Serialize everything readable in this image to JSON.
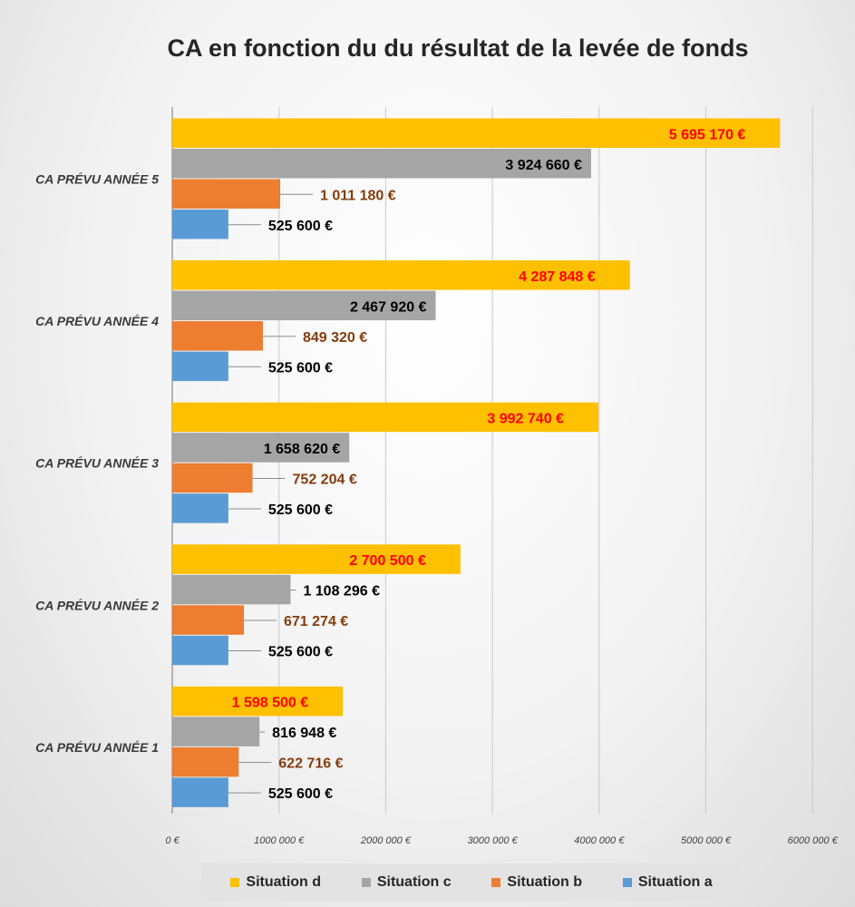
{
  "chart_data": {
    "type": "bar",
    "orientation": "horizontal",
    "title": "CA en fonction du du résultat de la levée de fonds",
    "categories": [
      "CA PRÉVU ANNÉE 1",
      "CA PRÉVU ANNÉE 2",
      "CA PRÉVU ANNÉE 3",
      "CA PRÉVU ANNÉE 4",
      "CA PRÉVU ANNÉE 5"
    ],
    "xlim": [
      0,
      6000000
    ],
    "x_ticks": [
      0,
      1000000,
      2000000,
      3000000,
      4000000,
      5000000,
      6000000
    ],
    "x_tick_labels": [
      "0 €",
      "1000 000 €",
      "2000 000 €",
      "3000 000 €",
      "4000 000 €",
      "5000 000 €",
      "6000 000 €"
    ],
    "grid": true,
    "legend_position": "bottom",
    "series": [
      {
        "name": "Situation d",
        "color": "#FFC000",
        "label_color": "#FF0000",
        "values": [
          1598500,
          2700500,
          3992740,
          4287848,
          5695170
        ],
        "labels": [
          "1 598 500 €",
          "2 700 500 €",
          "3 992 740 €",
          "4 287 848 €",
          "5 695 170 €"
        ]
      },
      {
        "name": "Situation c",
        "color": "#A5A5A5",
        "label_color": "#000000",
        "values": [
          816948,
          1108296,
          1658620,
          2467920,
          3924660
        ],
        "labels": [
          "816 948 €",
          "1 108 296 €",
          "1 658 620 €",
          "2 467 920 €",
          "3 924 660 €"
        ]
      },
      {
        "name": "Situation b",
        "color": "#ED7D31",
        "label_color": "#843C0C",
        "values": [
          622716,
          671274,
          752204,
          849320,
          1011180
        ],
        "labels": [
          "622 716 €",
          "671 274 €",
          "752 204 €",
          "849 320 €",
          "1 011 180 €"
        ]
      },
      {
        "name": "Situation a",
        "color": "#5B9BD5",
        "label_color": "#000000",
        "values": [
          525600,
          525600,
          525600,
          525600,
          525600
        ],
        "labels": [
          "525 600 €",
          "525 600 €",
          "525 600 €",
          "525 600 €",
          "525 600 €"
        ]
      }
    ]
  }
}
